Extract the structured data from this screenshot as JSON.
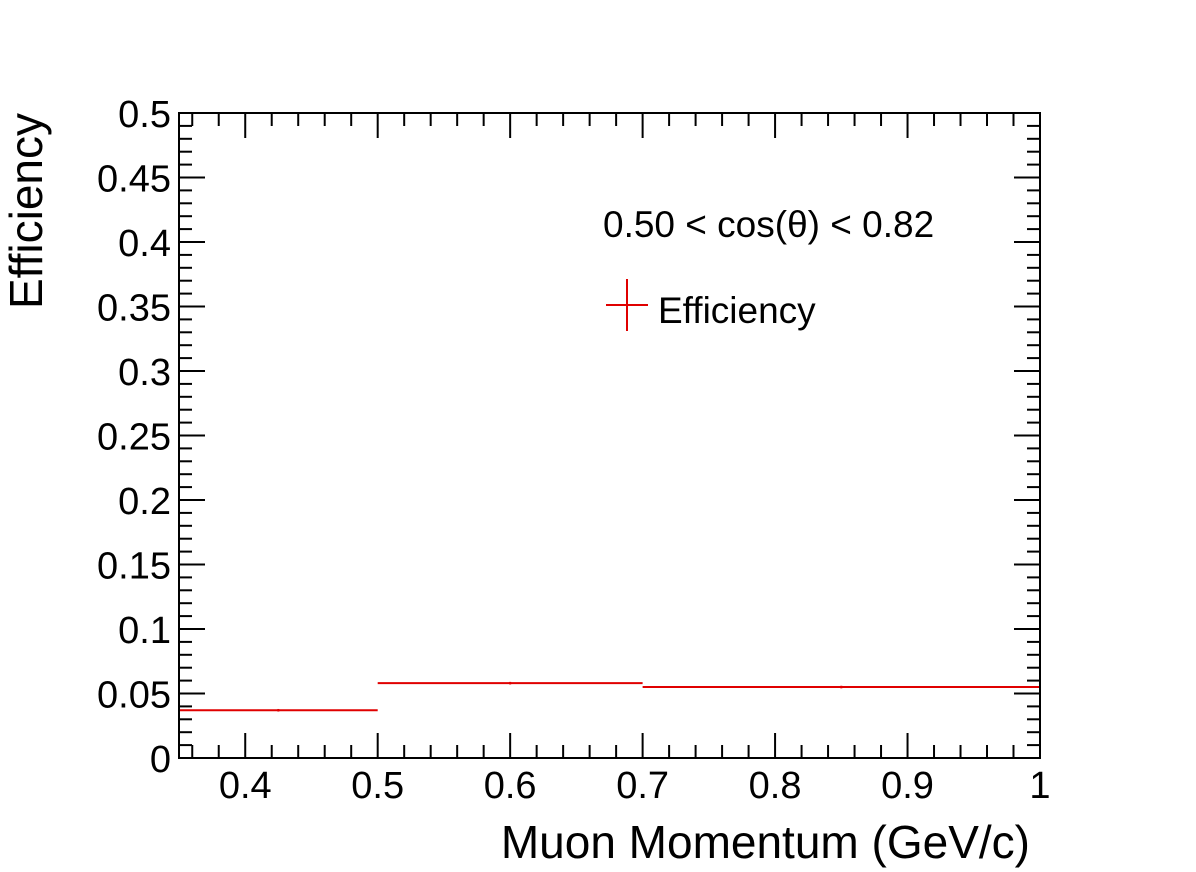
{
  "chart_data": {
    "type": "histogram",
    "xlabel": "Muon Momentum (GeV/c)",
    "ylabel": "Efficiency",
    "xlim": [
      0.35,
      1.0
    ],
    "ylim": [
      0,
      0.5
    ],
    "x_tick_labels": [
      "0.4",
      "0.5",
      "0.6",
      "0.7",
      "0.8",
      "0.9",
      "1"
    ],
    "y_tick_labels": [
      "0",
      "0.05",
      "0.1",
      "0.15",
      "0.2",
      "0.25",
      "0.3",
      "0.35",
      "0.4",
      "0.45",
      "0.5"
    ],
    "annotation": "0.50 < cos(θ) < 0.82",
    "legend": {
      "position": "top-right",
      "entries": [
        "Efficiency"
      ]
    },
    "series": [
      {
        "name": "Efficiency",
        "color": "#e00000",
        "bins": [
          {
            "x_low": 0.35,
            "x_high": 0.5,
            "x_center": 0.425,
            "value": 0.037,
            "error": 0.001
          },
          {
            "x_low": 0.5,
            "x_high": 0.7,
            "x_center": 0.6,
            "value": 0.058,
            "error": 0.001
          },
          {
            "x_low": 0.7,
            "x_high": 1.0,
            "x_center": 0.85,
            "value": 0.055,
            "error": 0.001
          }
        ]
      }
    ]
  }
}
